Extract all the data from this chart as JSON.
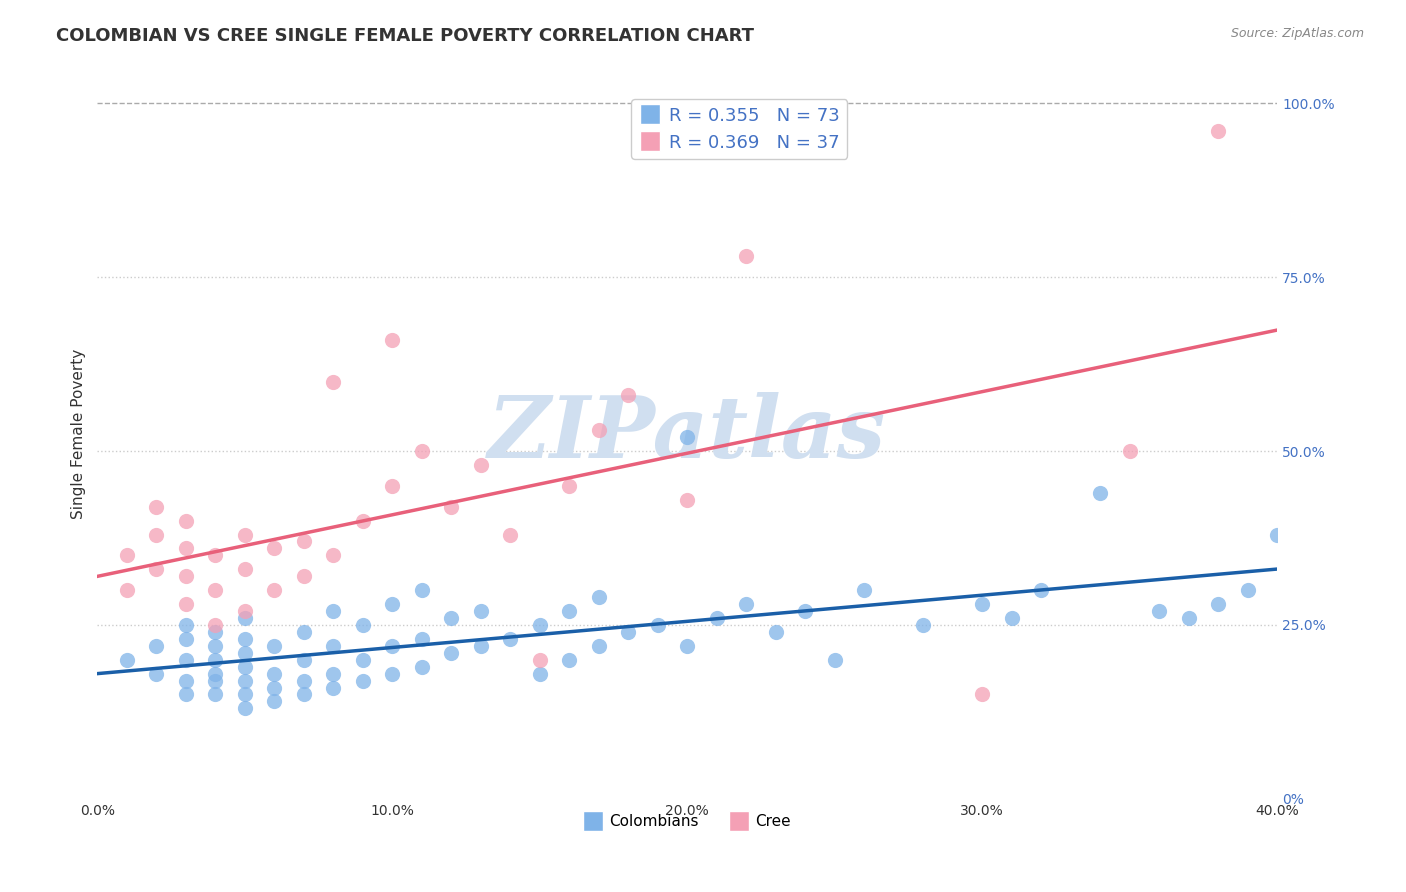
{
  "title": "COLOMBIAN VS CREE SINGLE FEMALE POVERTY CORRELATION CHART",
  "source": "Source: ZipAtlas.com",
  "xlabel": "",
  "ylabel": "Single Female Poverty",
  "xlim": [
    0.0,
    0.4
  ],
  "ylim": [
    0.0,
    1.05
  ],
  "xtick_labels": [
    "0.0%",
    "10.0%",
    "20.0%",
    "30.0%",
    "40.0%"
  ],
  "xtick_values": [
    0.0,
    0.1,
    0.2,
    0.3,
    0.4
  ],
  "ytick_labels_right": [
    "0%",
    "25.0%",
    "50.0%",
    "75.0%",
    "100.0%"
  ],
  "ytick_values_right": [
    0.0,
    0.25,
    0.5,
    0.75,
    1.0
  ],
  "legend_r_colombians": "R = 0.355",
  "legend_n_colombians": "N = 73",
  "legend_r_cree": "R = 0.369",
  "legend_n_cree": "N = 37",
  "colombian_color": "#7fb3e8",
  "cree_color": "#f4a0b5",
  "colombian_line_color": "#1a5fa8",
  "cree_line_color": "#e8607a",
  "background_color": "#ffffff",
  "watermark_text": "ZIPatlas",
  "watermark_color": "#d0dff0",
  "title_fontsize": 13,
  "axis_label_fontsize": 11,
  "tick_fontsize": 10,
  "colombians_x": [
    0.01,
    0.02,
    0.02,
    0.03,
    0.03,
    0.03,
    0.03,
    0.03,
    0.04,
    0.04,
    0.04,
    0.04,
    0.04,
    0.04,
    0.05,
    0.05,
    0.05,
    0.05,
    0.05,
    0.05,
    0.05,
    0.06,
    0.06,
    0.06,
    0.06,
    0.07,
    0.07,
    0.07,
    0.07,
    0.08,
    0.08,
    0.08,
    0.08,
    0.09,
    0.09,
    0.09,
    0.1,
    0.1,
    0.1,
    0.11,
    0.11,
    0.11,
    0.12,
    0.12,
    0.13,
    0.13,
    0.14,
    0.15,
    0.15,
    0.16,
    0.16,
    0.17,
    0.17,
    0.18,
    0.19,
    0.2,
    0.2,
    0.21,
    0.22,
    0.23,
    0.24,
    0.25,
    0.26,
    0.28,
    0.3,
    0.31,
    0.32,
    0.34,
    0.36,
    0.37,
    0.38,
    0.39,
    0.4
  ],
  "colombians_y": [
    0.2,
    0.18,
    0.22,
    0.15,
    0.17,
    0.2,
    0.23,
    0.25,
    0.15,
    0.17,
    0.18,
    0.2,
    0.22,
    0.24,
    0.13,
    0.15,
    0.17,
    0.19,
    0.21,
    0.23,
    0.26,
    0.14,
    0.16,
    0.18,
    0.22,
    0.15,
    0.17,
    0.2,
    0.24,
    0.16,
    0.18,
    0.22,
    0.27,
    0.17,
    0.2,
    0.25,
    0.18,
    0.22,
    0.28,
    0.19,
    0.23,
    0.3,
    0.21,
    0.26,
    0.22,
    0.27,
    0.23,
    0.18,
    0.25,
    0.2,
    0.27,
    0.22,
    0.29,
    0.24,
    0.25,
    0.22,
    0.52,
    0.26,
    0.28,
    0.24,
    0.27,
    0.2,
    0.3,
    0.25,
    0.28,
    0.26,
    0.3,
    0.44,
    0.27,
    0.26,
    0.28,
    0.3,
    0.38
  ],
  "cree_x": [
    0.01,
    0.01,
    0.02,
    0.02,
    0.02,
    0.03,
    0.03,
    0.03,
    0.03,
    0.04,
    0.04,
    0.04,
    0.05,
    0.05,
    0.05,
    0.06,
    0.06,
    0.07,
    0.07,
    0.08,
    0.08,
    0.09,
    0.1,
    0.1,
    0.11,
    0.12,
    0.13,
    0.14,
    0.15,
    0.16,
    0.17,
    0.18,
    0.2,
    0.22,
    0.3,
    0.35,
    0.38
  ],
  "cree_y": [
    0.3,
    0.35,
    0.33,
    0.38,
    0.42,
    0.28,
    0.32,
    0.36,
    0.4,
    0.25,
    0.3,
    0.35,
    0.27,
    0.33,
    0.38,
    0.3,
    0.36,
    0.32,
    0.37,
    0.35,
    0.6,
    0.4,
    0.66,
    0.45,
    0.5,
    0.42,
    0.48,
    0.38,
    0.2,
    0.45,
    0.53,
    0.58,
    0.43,
    0.78,
    0.15,
    0.5,
    0.96
  ]
}
